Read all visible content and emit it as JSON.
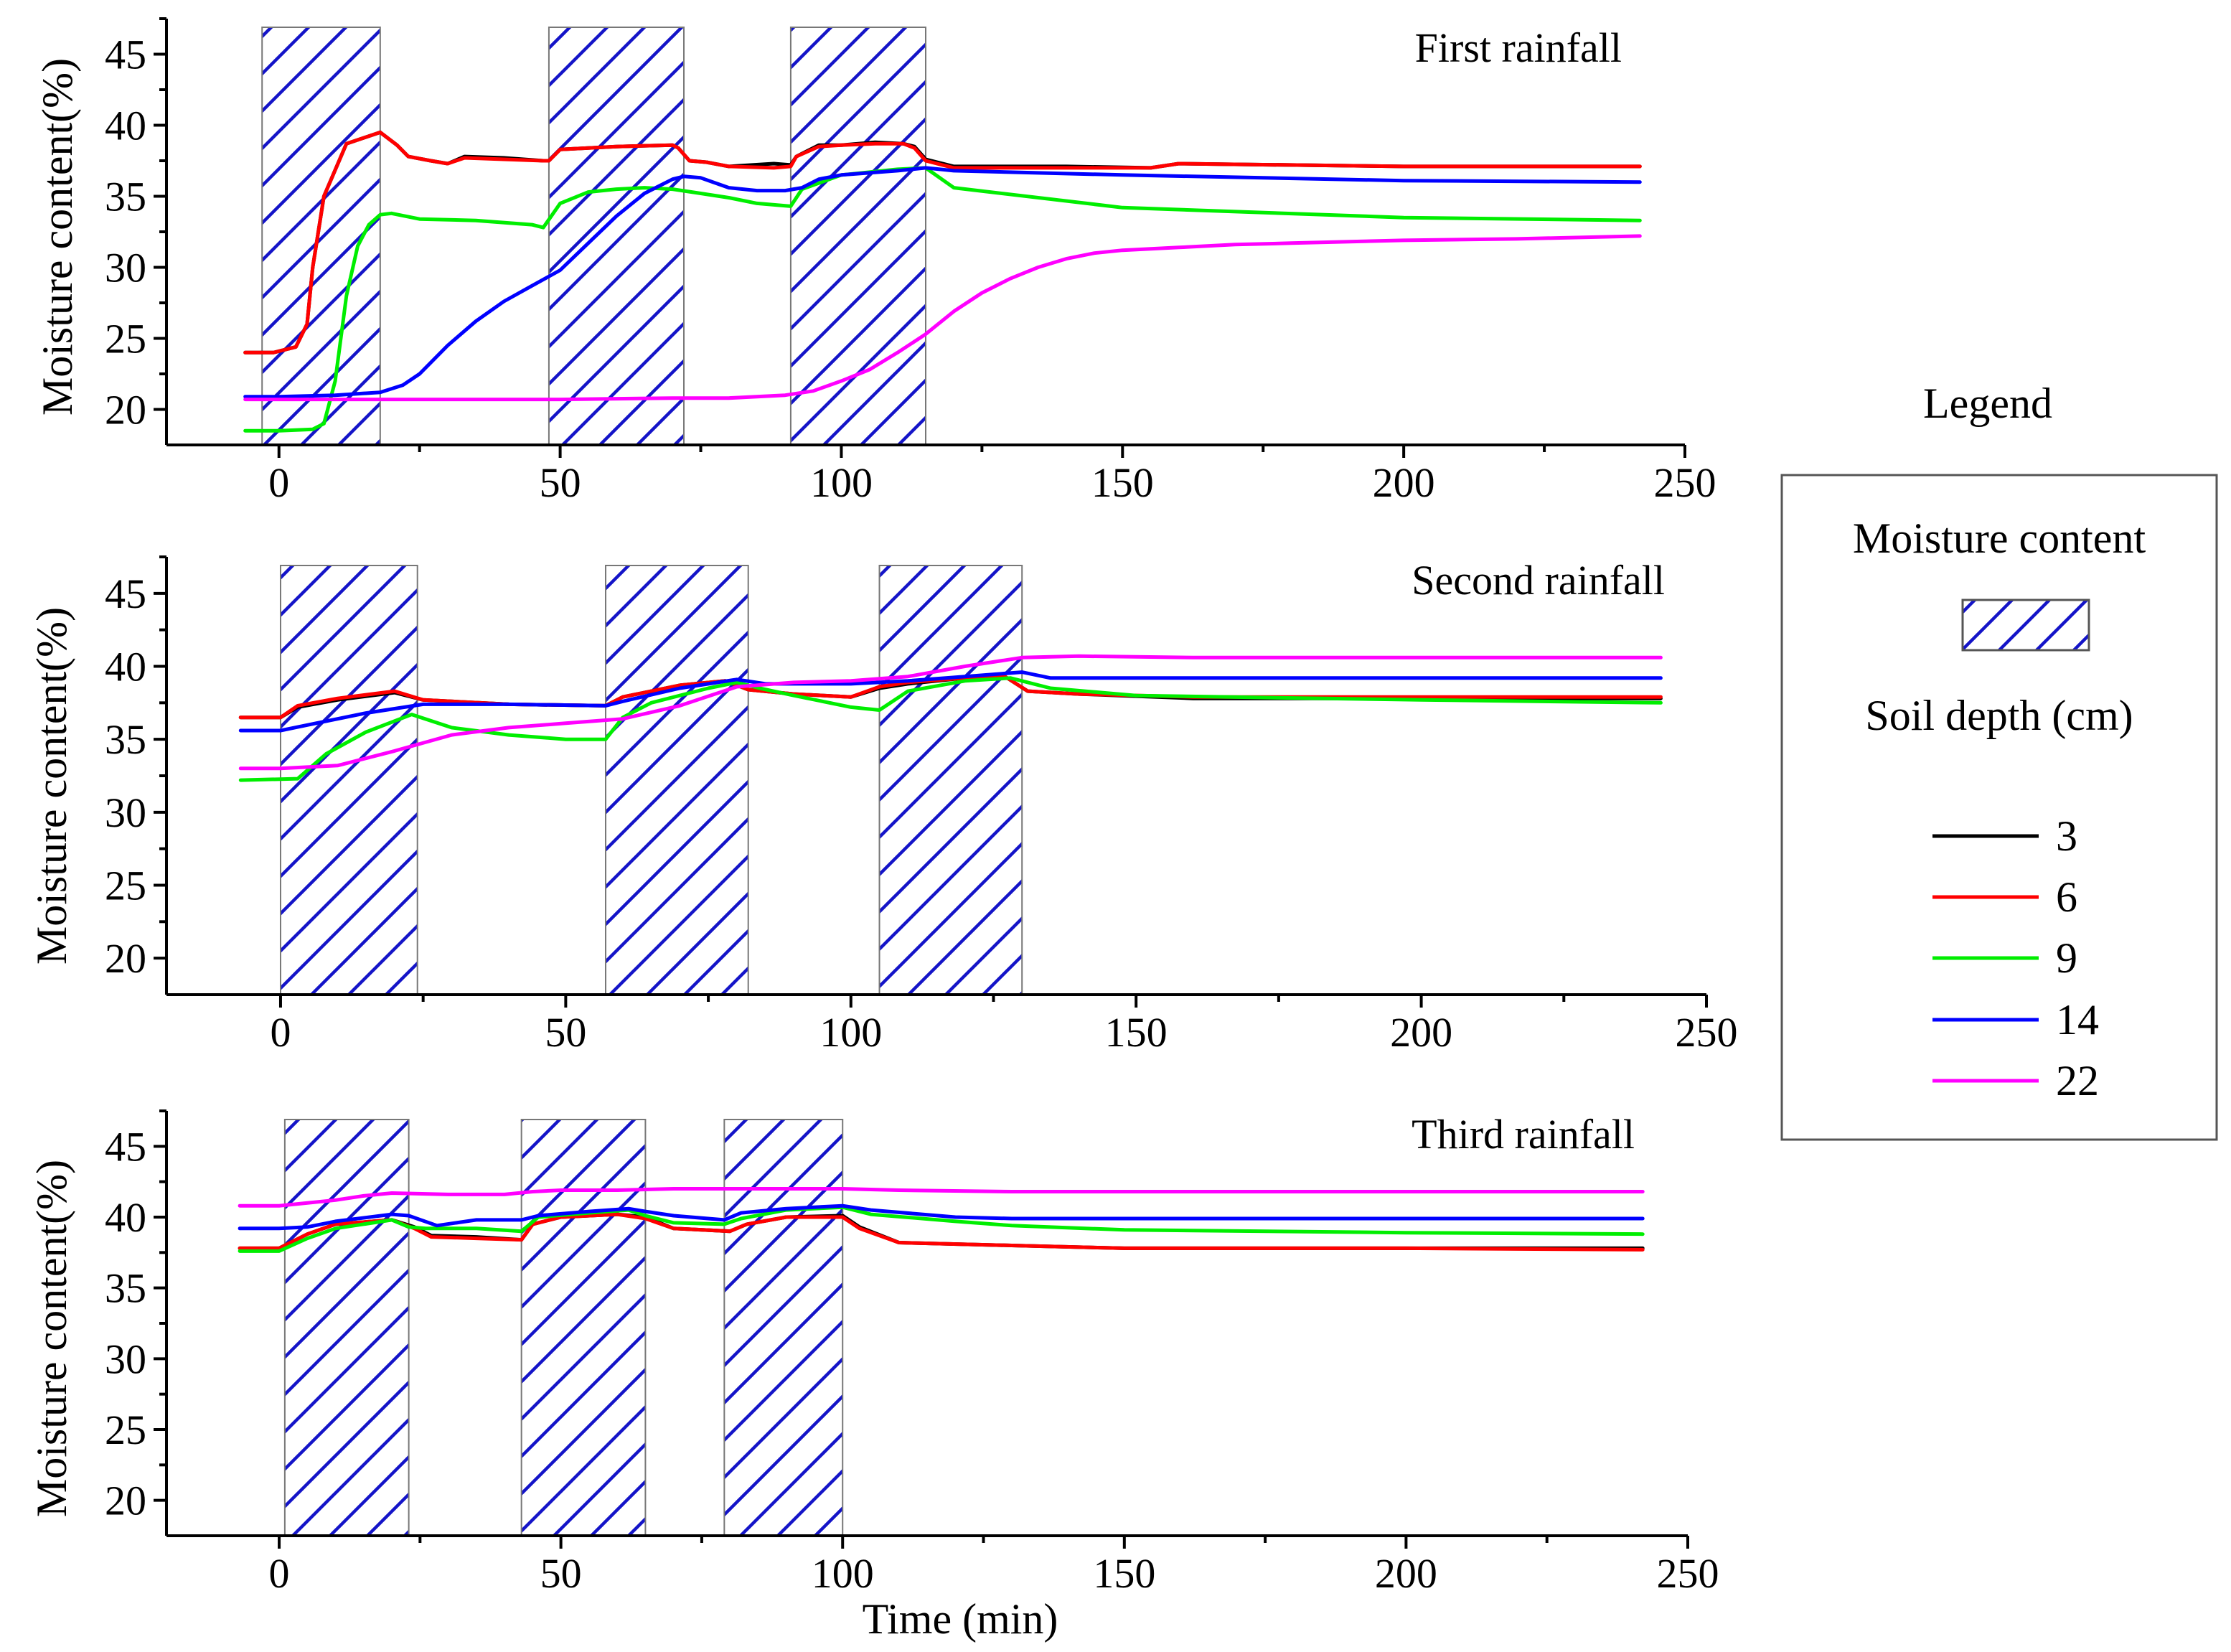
{
  "legend": {
    "title": "Legend",
    "hatch_label": "Moisture content",
    "depth_label": "Soil depth (cm)",
    "colors": [
      "#000000",
      "#ff0000",
      "#00ee00",
      "#0000ff",
      "#ff00ff"
    ]
  },
  "chart_data": [
    {
      "type": "line",
      "title": "First rainfall",
      "xlabel": "",
      "ylabel": "Moisture content(%)",
      "xlim": [
        -20,
        250
      ],
      "ylim": [
        17.5,
        47.5
      ],
      "xticks": [
        0,
        50,
        100,
        150,
        200,
        250
      ],
      "yticks": [
        20,
        25,
        30,
        35,
        40,
        45
      ],
      "rain_periods": [
        [
          -3,
          18
        ],
        [
          48,
          72
        ],
        [
          91,
          115
        ]
      ],
      "series": [
        {
          "name": "3",
          "x": [
            -6,
            -1,
            3,
            5,
            6,
            8,
            12,
            18,
            21,
            23,
            27,
            30,
            33,
            40,
            47,
            48,
            50,
            60,
            70,
            71,
            73,
            76,
            80,
            88,
            91,
            92,
            96,
            100,
            106,
            111,
            113,
            115,
            120,
            140,
            155,
            160,
            200,
            242
          ],
          "y": [
            24,
            24,
            24.4,
            26,
            30,
            35,
            38.7,
            39.5,
            38.6,
            37.8,
            37.5,
            37.3,
            37.8,
            37.7,
            37.5,
            37.5,
            38.3,
            38.5,
            38.6,
            38.4,
            37.5,
            37.4,
            37.1,
            37.3,
            37.2,
            37.8,
            38.6,
            38.6,
            38.8,
            38.7,
            38.5,
            37.6,
            37.1,
            37.1,
            37,
            37.3,
            37.1,
            37.1
          ]
        },
        {
          "name": "6",
          "x": [
            -6,
            -1,
            3,
            5,
            6,
            8,
            12,
            18,
            21,
            23,
            27,
            30,
            33,
            40,
            47,
            48,
            50,
            60,
            70,
            71,
            73,
            76,
            80,
            88,
            91,
            92,
            96,
            100,
            106,
            111,
            113,
            115,
            120,
            140,
            155,
            160,
            200,
            242
          ],
          "y": [
            24,
            24,
            24.4,
            26,
            30,
            35,
            38.7,
            39.5,
            38.6,
            37.8,
            37.5,
            37.3,
            37.7,
            37.6,
            37.5,
            37.5,
            38.3,
            38.5,
            38.6,
            38.4,
            37.5,
            37.4,
            37.1,
            37,
            37.1,
            37.8,
            38.5,
            38.6,
            38.7,
            38.7,
            38.4,
            37.5,
            37,
            37,
            37,
            37.3,
            37.1,
            37.1
          ]
        },
        {
          "name": "9",
          "x": [
            -6,
            0,
            6,
            8,
            10,
            12,
            14,
            16,
            18,
            20,
            25,
            35,
            45,
            47,
            50,
            55,
            60,
            65,
            70,
            75,
            80,
            85,
            88,
            91,
            93,
            100,
            110,
            115,
            120,
            150,
            200,
            242
          ],
          "y": [
            18.5,
            18.5,
            18.6,
            19,
            22,
            28,
            31.5,
            33,
            33.7,
            33.8,
            33.4,
            33.3,
            33,
            32.8,
            34.5,
            35.3,
            35.5,
            35.6,
            35.5,
            35.2,
            34.9,
            34.5,
            34.4,
            34.3,
            35.5,
            36.5,
            36.9,
            37,
            35.6,
            34.2,
            33.5,
            33.3
          ]
        },
        {
          "name": "14",
          "x": [
            -6,
            0,
            10,
            18,
            22,
            25,
            30,
            35,
            40,
            45,
            50,
            55,
            60,
            65,
            70,
            72,
            75,
            80,
            85,
            90,
            93,
            96,
            100,
            110,
            115,
            120,
            150,
            200,
            242
          ],
          "y": [
            20.9,
            20.9,
            21,
            21.2,
            21.7,
            22.5,
            24.5,
            26.2,
            27.6,
            28.7,
            29.8,
            31.7,
            33.6,
            35.2,
            36.2,
            36.4,
            36.3,
            35.6,
            35.4,
            35.4,
            35.6,
            36.2,
            36.5,
            36.8,
            37,
            36.8,
            36.5,
            36.1,
            36
          ]
        },
        {
          "name": "22",
          "x": [
            -6,
            0,
            20,
            50,
            70,
            80,
            90,
            95,
            100,
            105,
            110,
            115,
            120,
            125,
            130,
            135,
            140,
            145,
            150,
            160,
            170,
            180,
            200,
            220,
            242
          ],
          "y": [
            20.7,
            20.7,
            20.7,
            20.7,
            20.8,
            20.8,
            21,
            21.3,
            22,
            22.8,
            24,
            25.3,
            26.9,
            28.2,
            29.2,
            30,
            30.6,
            31,
            31.2,
            31.4,
            31.6,
            31.7,
            31.9,
            32,
            32.2
          ]
        }
      ]
    },
    {
      "type": "line",
      "title": "Second rainfall",
      "xlabel": "",
      "ylabel": "Moisture content(%)",
      "xlim": [
        -20,
        250
      ],
      "ylim": [
        17.5,
        47.5
      ],
      "xticks": [
        0,
        50,
        100,
        150,
        200,
        250
      ],
      "yticks": [
        20,
        25,
        30,
        35,
        40,
        45
      ],
      "rain_periods": [
        [
          0,
          24
        ],
        [
          57,
          82
        ],
        [
          105,
          130
        ]
      ],
      "series": [
        {
          "name": "3",
          "x": [
            -7,
            0,
            3,
            10,
            20,
            25,
            40,
            57,
            60,
            70,
            78,
            82,
            90,
            100,
            105,
            110,
            120,
            127,
            131,
            140,
            160,
            200,
            242
          ],
          "y": [
            36.5,
            36.5,
            37.2,
            37.7,
            38.2,
            37.7,
            37.4,
            37.3,
            37.9,
            38.7,
            39,
            38.4,
            38.1,
            37.9,
            38.5,
            38.8,
            39.2,
            39.3,
            38.3,
            38.1,
            37.8,
            37.8,
            37.8
          ]
        },
        {
          "name": "6",
          "x": [
            -7,
            0,
            3,
            10,
            20,
            25,
            40,
            57,
            60,
            70,
            78,
            82,
            90,
            100,
            105,
            110,
            120,
            127,
            131,
            140,
            160,
            200,
            242
          ],
          "y": [
            36.5,
            36.5,
            37.3,
            37.8,
            38.3,
            37.7,
            37.4,
            37.3,
            37.9,
            38.7,
            39,
            38.4,
            38.1,
            37.9,
            38.6,
            38.9,
            39.2,
            39.3,
            38.3,
            38.1,
            37.9,
            37.9,
            37.9
          ]
        },
        {
          "name": "9",
          "x": [
            -7,
            3,
            8,
            15,
            23,
            30,
            40,
            50,
            57,
            60,
            65,
            75,
            80,
            84,
            90,
            100,
            105,
            110,
            120,
            128,
            135,
            150,
            200,
            242
          ],
          "y": [
            32.2,
            32.3,
            34,
            35.5,
            36.7,
            35.8,
            35.3,
            35,
            35,
            36.5,
            37.5,
            38.5,
            38.9,
            38.5,
            38,
            37.2,
            37,
            38.3,
            39,
            39.2,
            38.5,
            38,
            37.7,
            37.5
          ]
        },
        {
          "name": "14",
          "x": [
            -7,
            0,
            5,
            15,
            25,
            40,
            57,
            60,
            70,
            80,
            85,
            90,
            100,
            110,
            120,
            130,
            135,
            150,
            200,
            242
          ],
          "y": [
            35.6,
            35.6,
            36,
            36.8,
            37.4,
            37.4,
            37.3,
            37.6,
            38.5,
            39.1,
            38.8,
            38.8,
            38.8,
            39,
            39.3,
            39.6,
            39.2,
            39.2,
            39.2,
            39.2
          ]
        },
        {
          "name": "22",
          "x": [
            -7,
            0,
            10,
            20,
            30,
            40,
            50,
            60,
            70,
            80,
            90,
            100,
            110,
            120,
            130,
            140,
            160,
            200,
            242
          ],
          "y": [
            33,
            33,
            33.2,
            34.2,
            35.3,
            35.8,
            36.1,
            36.4,
            37.3,
            38.6,
            38.9,
            39,
            39.3,
            40,
            40.6,
            40.7,
            40.6,
            40.6,
            40.6
          ]
        }
      ]
    },
    {
      "type": "line",
      "title": "Third rainfall",
      "xlabel": "Time (min)",
      "ylabel": "Moisture content(%)",
      "xlim": [
        -20,
        250
      ],
      "ylim": [
        17.5,
        47.5
      ],
      "xticks": [
        0,
        50,
        100,
        150,
        200,
        250
      ],
      "yticks": [
        20,
        25,
        30,
        35,
        40,
        45
      ],
      "rain_periods": [
        [
          1,
          23
        ],
        [
          43,
          65
        ],
        [
          79,
          100
        ]
      ],
      "series": [
        {
          "name": "3",
          "x": [
            -7,
            0,
            5,
            10,
            20,
            24,
            27,
            35,
            43,
            45,
            50,
            60,
            65,
            70,
            80,
            83,
            90,
            100,
            103,
            110,
            130,
            150,
            200,
            242
          ],
          "y": [
            37.8,
            37.8,
            38.8,
            39.5,
            39.8,
            39.3,
            38.7,
            38.6,
            38.4,
            39.5,
            40,
            40.2,
            40,
            39.2,
            39,
            39.5,
            40,
            40.1,
            39.3,
            38.2,
            38,
            37.8,
            37.8,
            37.8
          ]
        },
        {
          "name": "6",
          "x": [
            -7,
            0,
            5,
            10,
            20,
            24,
            27,
            35,
            43,
            45,
            50,
            60,
            65,
            70,
            80,
            83,
            90,
            100,
            103,
            110,
            130,
            150,
            200,
            242
          ],
          "y": [
            37.8,
            37.8,
            38.8,
            39.5,
            39.8,
            39.2,
            38.6,
            38.5,
            38.4,
            39.5,
            40,
            40.2,
            39.9,
            39.2,
            39,
            39.5,
            40,
            40,
            39.2,
            38.2,
            38,
            37.8,
            37.8,
            37.7
          ]
        },
        {
          "name": "9",
          "x": [
            -7,
            0,
            5,
            10,
            20,
            23,
            26,
            35,
            43,
            46,
            55,
            62,
            65,
            70,
            79,
            82,
            90,
            100,
            105,
            120,
            130,
            150,
            200,
            242
          ],
          "y": [
            37.6,
            37.6,
            38.5,
            39.2,
            39.8,
            39.3,
            39.2,
            39.2,
            39,
            40,
            40.3,
            40.5,
            40.1,
            39.6,
            39.5,
            39.9,
            40.5,
            40.7,
            40.2,
            39.7,
            39.4,
            39.1,
            38.9,
            38.8
          ]
        },
        {
          "name": "14",
          "x": [
            -7,
            0,
            5,
            10,
            20,
            23,
            28,
            35,
            43,
            46,
            55,
            62,
            65,
            70,
            79,
            82,
            90,
            100,
            105,
            120,
            130,
            200,
            242
          ],
          "y": [
            39.2,
            39.2,
            39.3,
            39.7,
            40.2,
            40.1,
            39.4,
            39.8,
            39.8,
            40.1,
            40.4,
            40.6,
            40.4,
            40.1,
            39.8,
            40.3,
            40.6,
            40.8,
            40.5,
            40,
            39.9,
            39.9,
            39.9
          ]
        },
        {
          "name": "22",
          "x": [
            -7,
            0,
            5,
            10,
            15,
            20,
            30,
            40,
            45,
            50,
            60,
            70,
            80,
            90,
            100,
            110,
            130,
            160,
            200,
            242
          ],
          "y": [
            40.8,
            40.8,
            41,
            41.2,
            41.5,
            41.7,
            41.6,
            41.6,
            41.8,
            41.9,
            41.9,
            42,
            42,
            42,
            42,
            41.9,
            41.8,
            41.8,
            41.8,
            41.8
          ]
        }
      ]
    }
  ]
}
